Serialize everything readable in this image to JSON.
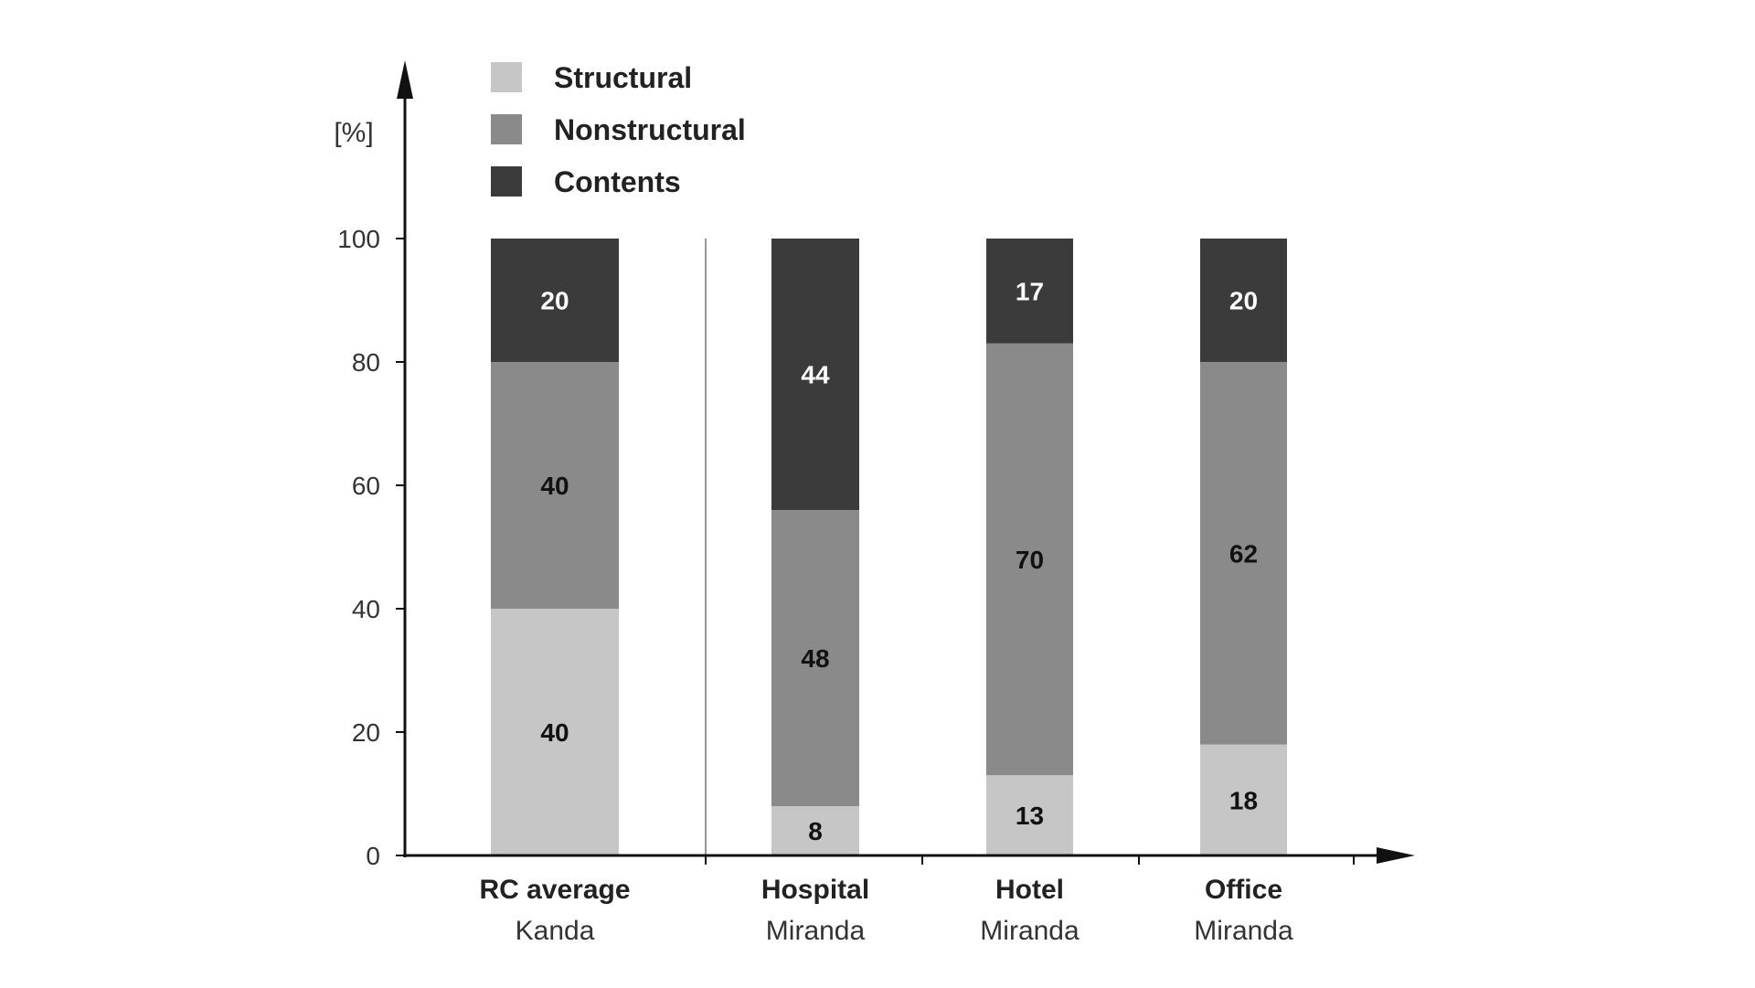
{
  "chart_data": {
    "type": "bar",
    "stacked": true,
    "title": "",
    "xlabel": "",
    "ylabel": "[%]",
    "ylim": [
      0,
      100
    ],
    "yticks": [
      0,
      20,
      40,
      60,
      80,
      100
    ],
    "grid": false,
    "legend_position": "top-left",
    "categories": [
      {
        "line1": "RC average",
        "line2": "Kanda"
      },
      {
        "line1": "Hospital",
        "line2": "Miranda"
      },
      {
        "line1": "Hotel",
        "line2": "Miranda"
      },
      {
        "line1": "Office",
        "line2": "Miranda"
      }
    ],
    "series": [
      {
        "name": "Structural",
        "color": "#c6c6c6",
        "label_color": "#111111",
        "values": [
          40,
          8,
          13,
          18
        ]
      },
      {
        "name": "Nonstructural",
        "color": "#8a8a8a",
        "label_color": "#111111",
        "values": [
          40,
          48,
          70,
          62
        ]
      },
      {
        "name": "Contents",
        "color": "#3b3b3b",
        "label_color": "#ffffff",
        "values": [
          20,
          44,
          17,
          20
        ]
      }
    ]
  }
}
